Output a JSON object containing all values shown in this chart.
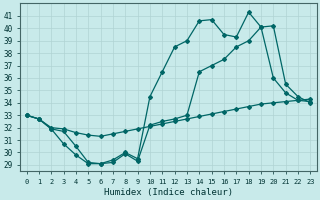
{
  "xlabel": "Humidex (Indice chaleur)",
  "ylabel": "",
  "background_color": "#c8eaea",
  "grid_color": "#b0d4d4",
  "line_color": "#006666",
  "xlim": [
    -0.5,
    23.5
  ],
  "ylim": [
    28.5,
    42
  ],
  "yticks": [
    29,
    30,
    31,
    32,
    33,
    34,
    35,
    36,
    37,
    38,
    39,
    40,
    41
  ],
  "xticks": [
    0,
    1,
    2,
    3,
    4,
    5,
    6,
    7,
    8,
    9,
    10,
    11,
    12,
    13,
    14,
    15,
    16,
    17,
    18,
    19,
    20,
    21,
    22,
    23
  ],
  "line1_x": [
    0,
    1,
    2,
    3,
    4,
    5,
    6,
    7,
    8,
    9,
    10,
    11,
    12,
    13,
    14,
    15,
    16,
    17,
    18,
    19,
    20,
    21,
    22,
    23
  ],
  "line1_y": [
    33.0,
    32.7,
    32.0,
    31.9,
    31.6,
    31.4,
    31.3,
    31.5,
    31.7,
    31.9,
    32.1,
    32.3,
    32.5,
    32.7,
    32.9,
    33.1,
    33.3,
    33.5,
    33.7,
    33.9,
    34.0,
    34.1,
    34.2,
    34.3
  ],
  "line2_x": [
    0,
    1,
    2,
    3,
    4,
    5,
    6,
    7,
    8,
    9,
    10,
    11,
    12,
    13,
    14,
    15,
    16,
    17,
    18,
    19,
    20,
    21,
    22,
    23
  ],
  "line2_y": [
    33.0,
    32.7,
    31.9,
    30.7,
    29.8,
    29.1,
    29.1,
    29.2,
    29.9,
    29.3,
    32.2,
    32.5,
    32.7,
    33.0,
    36.5,
    37.0,
    37.5,
    38.5,
    39.0,
    40.1,
    40.2,
    35.5,
    34.5,
    34.0
  ],
  "line3_x": [
    0,
    1,
    2,
    3,
    4,
    5,
    6,
    7,
    8,
    9,
    10,
    11,
    12,
    13,
    14,
    15,
    16,
    17,
    18,
    19,
    20,
    21,
    22,
    23
  ],
  "line3_y": [
    33.0,
    32.7,
    31.9,
    31.7,
    30.5,
    29.2,
    29.1,
    29.4,
    30.0,
    29.5,
    34.5,
    36.5,
    38.5,
    39.0,
    40.6,
    40.7,
    39.5,
    39.3,
    41.3,
    40.1,
    36.0,
    34.8,
    34.2,
    34.1
  ]
}
